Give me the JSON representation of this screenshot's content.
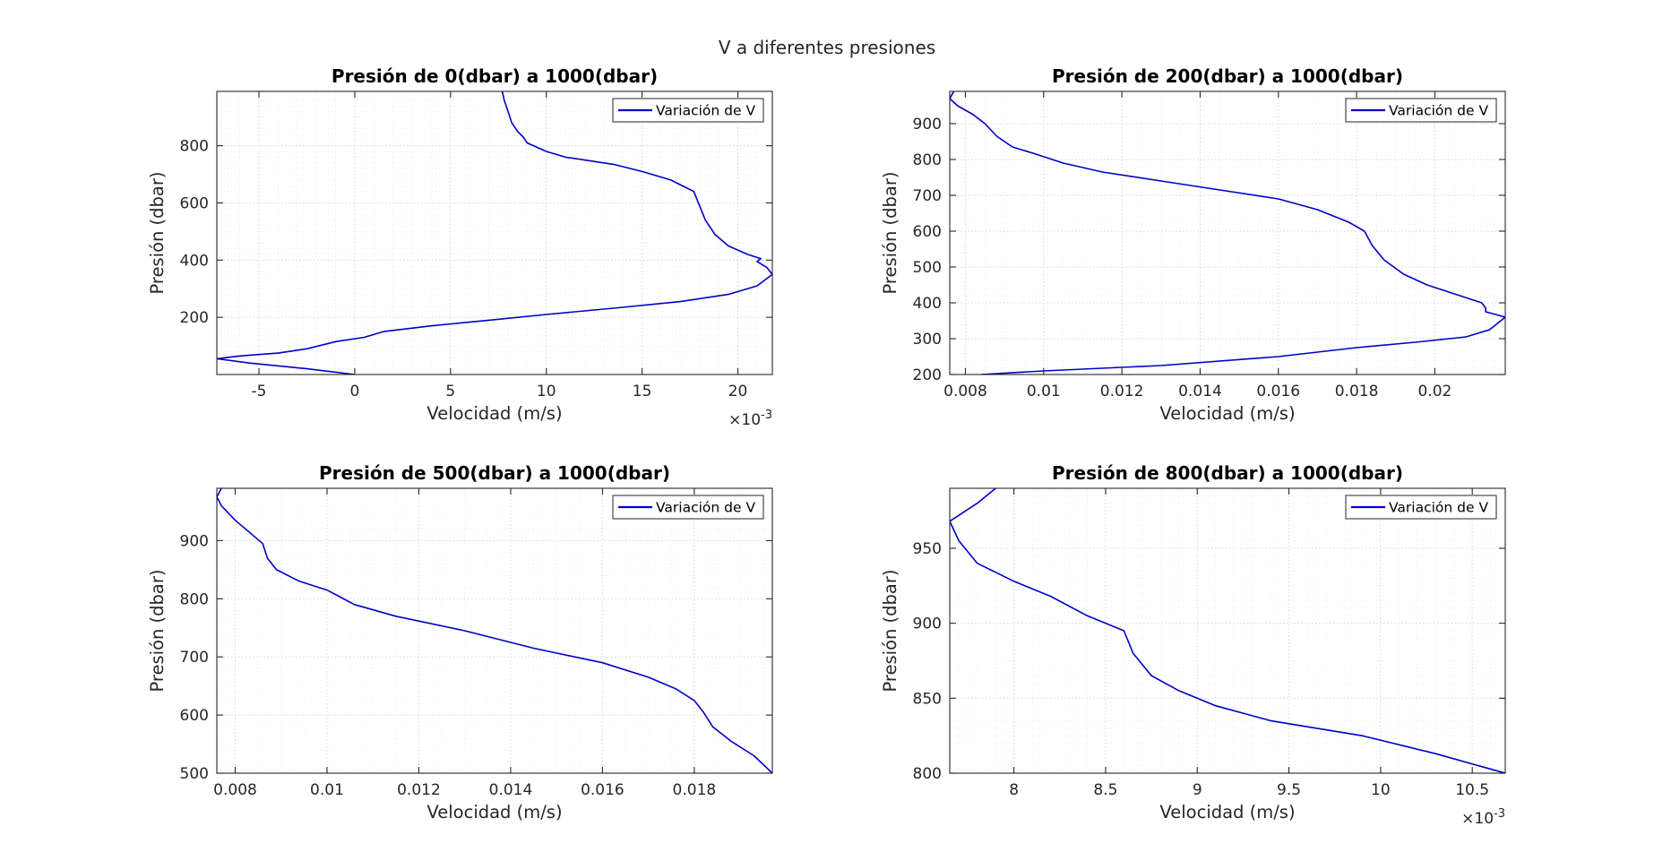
{
  "figure": {
    "title": "V a diferentes presiones"
  },
  "chart_data": [
    {
      "type": "line",
      "title": "Presión de 0(dbar) a 1000(dbar)",
      "xlabel": "Velocidad (m/s)",
      "ylabel": "Presión (dbar)",
      "xlim": [
        -0.0072,
        0.0218
      ],
      "ylim": [
        0,
        990
      ],
      "xticks": [
        -0.005,
        0,
        0.005,
        0.01,
        0.015,
        0.02
      ],
      "xtick_labels": [
        "-5",
        "0",
        "5",
        "10",
        "15",
        "20"
      ],
      "x_exponent": "-3",
      "yticks": [
        200,
        400,
        600,
        800
      ],
      "ytick_labels": [
        "200",
        "400",
        "600",
        "800"
      ],
      "grid": true,
      "legend": "top-right",
      "series": [
        {
          "name": "Variación de V",
          "color": "#0000c8",
          "points": [
            [
              0.0,
              0
            ],
            [
              -0.0025,
              20
            ],
            [
              -0.0055,
              40
            ],
            [
              -0.0072,
              55
            ],
            [
              -0.006,
              65
            ],
            [
              -0.004,
              75
            ],
            [
              -0.0025,
              90
            ],
            [
              -0.001,
              115
            ],
            [
              0.0005,
              130
            ],
            [
              0.0015,
              150
            ],
            [
              0.004,
              170
            ],
            [
              0.007,
              190
            ],
            [
              0.01,
              210
            ],
            [
              0.014,
              235
            ],
            [
              0.017,
              255
            ],
            [
              0.0195,
              280
            ],
            [
              0.021,
              310
            ],
            [
              0.0218,
              350
            ],
            [
              0.0215,
              375
            ],
            [
              0.021,
              395
            ],
            [
              0.0212,
              405
            ],
            [
              0.0205,
              420
            ],
            [
              0.0195,
              450
            ],
            [
              0.0188,
              490
            ],
            [
              0.0183,
              540
            ],
            [
              0.018,
              590
            ],
            [
              0.0177,
              640
            ],
            [
              0.0165,
              680
            ],
            [
              0.015,
              710
            ],
            [
              0.0135,
              735
            ],
            [
              0.011,
              760
            ],
            [
              0.01,
              780
            ],
            [
              0.009,
              810
            ],
            [
              0.0088,
              830
            ],
            [
              0.0085,
              850
            ],
            [
              0.0082,
              880
            ],
            [
              0.008,
              920
            ],
            [
              0.0078,
              960
            ],
            [
              0.0077,
              990
            ]
          ]
        }
      ]
    },
    {
      "type": "line",
      "title": "Presión de 200(dbar) a 1000(dbar)",
      "xlabel": "Velocidad (m/s)",
      "ylabel": "Presión (dbar)",
      "xlim": [
        0.0076,
        0.0218
      ],
      "ylim": [
        200,
        990
      ],
      "xticks": [
        0.008,
        0.01,
        0.012,
        0.014,
        0.016,
        0.018,
        0.02
      ],
      "xtick_labels": [
        "0.008",
        "0.01",
        "0.012",
        "0.014",
        "0.016",
        "0.018",
        "0.02"
      ],
      "yticks": [
        200,
        300,
        400,
        500,
        600,
        700,
        800,
        900
      ],
      "ytick_labels": [
        "200",
        "300",
        "400",
        "500",
        "600",
        "700",
        "800",
        "900"
      ],
      "grid": true,
      "legend": "top-right",
      "series": [
        {
          "name": "Variación de V",
          "color": "#0000c8",
          "points": [
            [
              0.0084,
              200
            ],
            [
              0.01,
              210
            ],
            [
              0.013,
              225
            ],
            [
              0.016,
              250
            ],
            [
              0.018,
              275
            ],
            [
              0.0195,
              290
            ],
            [
              0.0208,
              305
            ],
            [
              0.0214,
              325
            ],
            [
              0.0218,
              360
            ],
            [
              0.0213,
              375
            ],
            [
              0.0213,
              385
            ],
            [
              0.0212,
              400
            ],
            [
              0.0205,
              425
            ],
            [
              0.0198,
              450
            ],
            [
              0.0192,
              480
            ],
            [
              0.0187,
              520
            ],
            [
              0.0184,
              560
            ],
            [
              0.0182,
              600
            ],
            [
              0.0178,
              625
            ],
            [
              0.017,
              660
            ],
            [
              0.016,
              690
            ],
            [
              0.0145,
              715
            ],
            [
              0.013,
              740
            ],
            [
              0.0115,
              765
            ],
            [
              0.0105,
              790
            ],
            [
              0.0098,
              815
            ],
            [
              0.0092,
              835
            ],
            [
              0.0088,
              865
            ],
            [
              0.0085,
              900
            ],
            [
              0.0082,
              925
            ],
            [
              0.0078,
              950
            ],
            [
              0.0076,
              970
            ],
            [
              0.0077,
              990
            ]
          ]
        }
      ]
    },
    {
      "type": "line",
      "title": "Presión de 500(dbar) a 1000(dbar)",
      "xlabel": "Velocidad (m/s)",
      "ylabel": "Presión (dbar)",
      "xlim": [
        0.0076,
        0.0197
      ],
      "ylim": [
        500,
        990
      ],
      "xticks": [
        0.008,
        0.01,
        0.012,
        0.014,
        0.016,
        0.018
      ],
      "xtick_labels": [
        "0.008",
        "0.01",
        "0.012",
        "0.014",
        "0.016",
        "0.018"
      ],
      "yticks": [
        500,
        600,
        700,
        800,
        900
      ],
      "ytick_labels": [
        "500",
        "600",
        "700",
        "800",
        "900"
      ],
      "grid": true,
      "legend": "top-right",
      "series": [
        {
          "name": "Variación de V",
          "color": "#0000c8",
          "points": [
            [
              0.0197,
              500
            ],
            [
              0.0193,
              530
            ],
            [
              0.0188,
              555
            ],
            [
              0.0184,
              580
            ],
            [
              0.0182,
              605
            ],
            [
              0.018,
              625
            ],
            [
              0.0176,
              645
            ],
            [
              0.017,
              665
            ],
            [
              0.016,
              690
            ],
            [
              0.0145,
              715
            ],
            [
              0.013,
              745
            ],
            [
              0.0115,
              770
            ],
            [
              0.0106,
              790
            ],
            [
              0.01,
              815
            ],
            [
              0.0094,
              830
            ],
            [
              0.0089,
              850
            ],
            [
              0.0087,
              870
            ],
            [
              0.0086,
              895
            ],
            [
              0.0083,
              915
            ],
            [
              0.008,
              935
            ],
            [
              0.0077,
              960
            ],
            [
              0.0076,
              975
            ],
            [
              0.0077,
              990
            ]
          ]
        }
      ]
    },
    {
      "type": "line",
      "title": "Presión de 800(dbar) a 1000(dbar)",
      "xlabel": "Velocidad (m/s)",
      "ylabel": "Presión (dbar)",
      "xlim": [
        0.00765,
        0.01068
      ],
      "ylim": [
        800,
        990
      ],
      "xticks": [
        0.008,
        0.0085,
        0.009,
        0.0095,
        0.01,
        0.0105
      ],
      "xtick_labels": [
        "8",
        "8.5",
        "9",
        "9.5",
        "10",
        "10.5"
      ],
      "x_exponent": "-3",
      "yticks": [
        800,
        850,
        900,
        950
      ],
      "ytick_labels": [
        "800",
        "850",
        "900",
        "950"
      ],
      "grid": true,
      "legend": "top-right",
      "series": [
        {
          "name": "Variación de V",
          "color": "#0000c8",
          "points": [
            [
              0.01068,
              800
            ],
            [
              0.0103,
              813
            ],
            [
              0.0099,
              825
            ],
            [
              0.0094,
              835
            ],
            [
              0.0091,
              845
            ],
            [
              0.0089,
              855
            ],
            [
              0.00875,
              865
            ],
            [
              0.00865,
              880
            ],
            [
              0.0086,
              895
            ],
            [
              0.0084,
              905
            ],
            [
              0.0082,
              918
            ],
            [
              0.008,
              928
            ],
            [
              0.0078,
              940
            ],
            [
              0.0077,
              955
            ],
            [
              0.00765,
              968
            ],
            [
              0.0078,
              980
            ],
            [
              0.0079,
              990
            ]
          ]
        }
      ]
    }
  ]
}
